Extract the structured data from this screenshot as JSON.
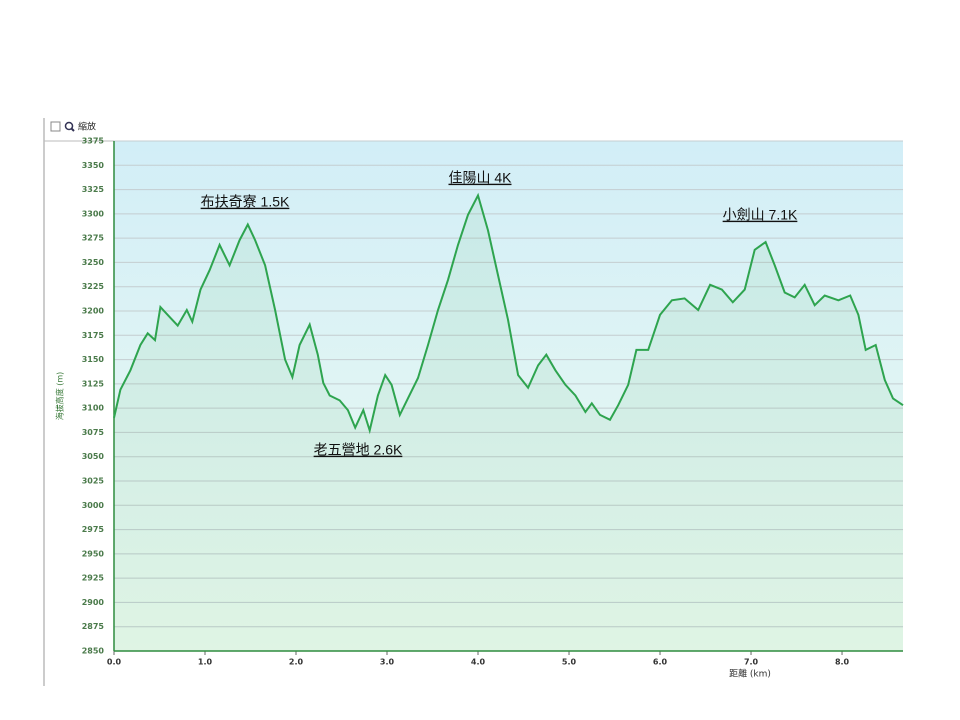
{
  "toolbar": {
    "zoom": "縮放"
  },
  "chart_data": {
    "type": "area",
    "xlabel": "距離 (km)",
    "ylabel": "海拔高度 (m)",
    "x": [
      0,
      0.07,
      0.18,
      0.29,
      0.37,
      0.45,
      0.51,
      0.62,
      0.7,
      0.8,
      0.86,
      0.95,
      1.05,
      1.16,
      1.27,
      1.38,
      1.47,
      1.55,
      1.66,
      1.77,
      1.88,
      1.96,
      2.04,
      2.15,
      2.24,
      2.3,
      2.37,
      2.48,
      2.57,
      2.65,
      2.74,
      2.81,
      2.9,
      2.98,
      3.05,
      3.14,
      3.23,
      3.34,
      3.45,
      3.56,
      3.67,
      3.78,
      3.89,
      4.0,
      4.11,
      4.22,
      4.33,
      4.44,
      4.55,
      4.66,
      4.75,
      4.85,
      4.96,
      5.07,
      5.18,
      5.25,
      5.34,
      5.45,
      5.54,
      5.65,
      5.74,
      5.87,
      6.0,
      6.13,
      6.27,
      6.42,
      6.55,
      6.68,
      6.8,
      6.93,
      7.04,
      7.16,
      7.26,
      7.37,
      7.48,
      7.59,
      7.7,
      7.81,
      7.96,
      8.09,
      8.18,
      8.26,
      8.37,
      8.47,
      8.56,
      8.67
    ],
    "series": [
      {
        "name": "海拔高度",
        "color": "#2ea44f",
        "values": [
          3090,
          3119,
          3139,
          3165,
          3177,
          3170,
          3204,
          3193,
          3185,
          3201,
          3189,
          3222,
          3242,
          3268,
          3247,
          3273,
          3289,
          3273,
          3247,
          3201,
          3150,
          3132,
          3165,
          3186,
          3155,
          3126,
          3113,
          3108,
          3098,
          3080,
          3098,
          3077,
          3113,
          3134,
          3124,
          3093,
          3110,
          3131,
          3165,
          3201,
          3232,
          3268,
          3299,
          3319,
          3283,
          3237,
          3191,
          3134,
          3121,
          3144,
          3155,
          3139,
          3124,
          3113,
          3096,
          3105,
          3093,
          3088,
          3103,
          3124,
          3160,
          3160,
          3196,
          3211,
          3213,
          3201,
          3227,
          3222,
          3209,
          3222,
          3263,
          3271,
          3247,
          3219,
          3214,
          3227,
          3206,
          3216,
          3211,
          3216,
          3196,
          3160,
          3165,
          3129,
          3110,
          3103
        ]
      }
    ],
    "xlim": [
      0,
      8.67
    ],
    "ylim": [
      2850,
      3375
    ],
    "xticks": [
      {
        "value": 0,
        "label": "0.0"
      },
      {
        "value": 1,
        "label": "1.0"
      },
      {
        "value": 2,
        "label": "2.0"
      },
      {
        "value": 3,
        "label": "3.0"
      },
      {
        "value": 4,
        "label": "4.0"
      },
      {
        "value": 5,
        "label": "5.0"
      },
      {
        "value": 6,
        "label": "6.0"
      },
      {
        "value": 7,
        "label": "7.0"
      },
      {
        "value": 8,
        "label": "8.0"
      }
    ],
    "yticks": [
      2850,
      2875,
      2900,
      2925,
      2950,
      2975,
      3000,
      3025,
      3050,
      3075,
      3100,
      3125,
      3150,
      3175,
      3200,
      3225,
      3250,
      3275,
      3300,
      3325,
      3350,
      3375
    ],
    "grid": true,
    "annotations": [
      "布扶奇寮 1.5K",
      "佳陽山 4K",
      "老五營地 2.6K",
      "小劍山 7.1K"
    ]
  }
}
